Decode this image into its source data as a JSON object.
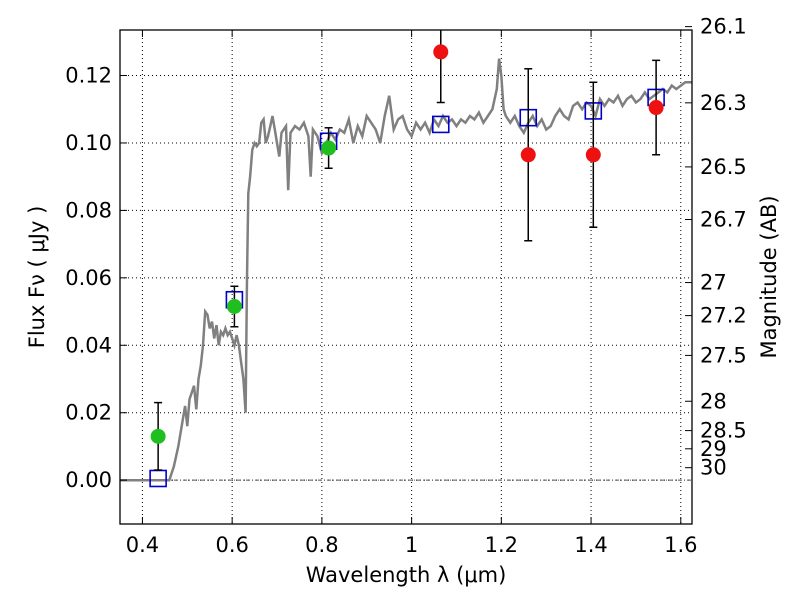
{
  "chart_data": {
    "type": "scatter",
    "title": "",
    "xlabel": "Wavelength  λ (μm)",
    "ylabel": "Flux  Fν  ( μJy )",
    "y2label": "Magnitude (AB)",
    "xlim": [
      0.35,
      1.625
    ],
    "ylim": [
      -0.013,
      0.1335
    ],
    "grid": true,
    "legend": "none",
    "x_ticks": [
      0.4,
      0.6,
      0.8,
      1.0,
      1.2,
      1.4,
      1.6
    ],
    "x_tick_labels": [
      "0.4",
      "0.6",
      "0.8",
      "1",
      "1.2",
      "1.4",
      "1.6"
    ],
    "y_ticks": [
      0.0,
      0.02,
      0.04,
      0.06,
      0.08,
      0.1,
      0.12
    ],
    "y_tick_labels": [
      "0.00",
      "0.02",
      "0.04",
      "0.06",
      "0.08",
      "0.10",
      "0.12"
    ],
    "y2_ticks": [
      {
        "label": "26.1",
        "flux": 0.1345
      },
      {
        "label": "26.3",
        "flux": 0.1119
      },
      {
        "label": "26.5",
        "flux": 0.0929
      },
      {
        "label": "26.7",
        "flux": 0.0773
      },
      {
        "label": "27",
        "flux": 0.0586
      },
      {
        "label": "27.2",
        "flux": 0.0488
      },
      {
        "label": "27.5",
        "flux": 0.037
      },
      {
        "label": "28",
        "flux": 0.0234
      },
      {
        "label": "28.5",
        "flux": 0.0147
      },
      {
        "label": "29",
        "flux": 0.0093
      },
      {
        "label": "30",
        "flux": 0.0037
      }
    ],
    "colors": {
      "template": "#808080",
      "model": "#0000cc",
      "green_points": "#1fbf1f",
      "red_points": "#ee1111",
      "errorbar": "#000000",
      "zero_line": "#555555"
    },
    "series": [
      {
        "kind": "line",
        "points": [
          [
            0.35,
            0.0
          ],
          [
            0.46,
            0.0
          ],
          [
            0.47,
            0.004
          ],
          [
            0.48,
            0.01
          ],
          [
            0.49,
            0.018
          ],
          [
            0.495,
            0.022
          ],
          [
            0.5,
            0.016
          ],
          [
            0.505,
            0.024
          ],
          [
            0.51,
            0.026
          ],
          [
            0.515,
            0.028
          ],
          [
            0.52,
            0.021
          ],
          [
            0.525,
            0.03
          ],
          [
            0.53,
            0.034
          ],
          [
            0.535,
            0.04
          ],
          [
            0.54,
            0.05
          ],
          [
            0.545,
            0.049
          ],
          [
            0.55,
            0.045
          ],
          [
            0.555,
            0.047
          ],
          [
            0.56,
            0.042
          ],
          [
            0.565,
            0.046
          ],
          [
            0.57,
            0.04
          ],
          [
            0.575,
            0.044
          ],
          [
            0.58,
            0.043
          ],
          [
            0.585,
            0.045
          ],
          [
            0.59,
            0.043
          ],
          [
            0.595,
            0.044
          ],
          [
            0.6,
            0.042
          ],
          [
            0.605,
            0.04
          ],
          [
            0.61,
            0.043
          ],
          [
            0.615,
            0.04
          ],
          [
            0.62,
            0.035
          ],
          [
            0.625,
            0.03
          ],
          [
            0.63,
            0.02
          ],
          [
            0.633,
            0.06
          ],
          [
            0.636,
            0.085
          ],
          [
            0.64,
            0.09
          ],
          [
            0.645,
            0.098
          ],
          [
            0.65,
            0.1
          ],
          [
            0.655,
            0.099
          ],
          [
            0.66,
            0.1
          ],
          [
            0.665,
            0.106
          ],
          [
            0.67,
            0.107
          ],
          [
            0.675,
            0.1
          ],
          [
            0.68,
            0.102
          ],
          [
            0.685,
            0.105
          ],
          [
            0.69,
            0.108
          ],
          [
            0.695,
            0.104
          ],
          [
            0.7,
            0.1
          ],
          [
            0.705,
            0.096
          ],
          [
            0.71,
            0.103
          ],
          [
            0.72,
            0.105
          ],
          [
            0.725,
            0.086
          ],
          [
            0.73,
            0.103
          ],
          [
            0.74,
            0.105
          ],
          [
            0.75,
            0.104
          ],
          [
            0.76,
            0.106
          ],
          [
            0.77,
            0.102
          ],
          [
            0.775,
            0.09
          ],
          [
            0.78,
            0.104
          ],
          [
            0.79,
            0.102
          ],
          [
            0.8,
            0.097
          ],
          [
            0.81,
            0.1
          ],
          [
            0.82,
            0.103
          ],
          [
            0.83,
            0.101
          ],
          [
            0.84,
            0.104
          ],
          [
            0.85,
            0.103
          ],
          [
            0.86,
            0.107
          ],
          [
            0.87,
            0.1
          ],
          [
            0.88,
            0.105
          ],
          [
            0.89,
            0.102
          ],
          [
            0.9,
            0.108
          ],
          [
            0.91,
            0.106
          ],
          [
            0.92,
            0.104
          ],
          [
            0.93,
            0.1
          ],
          [
            0.94,
            0.108
          ],
          [
            0.95,
            0.114
          ],
          [
            0.96,
            0.104
          ],
          [
            0.97,
            0.107
          ],
          [
            0.98,
            0.108
          ],
          [
            0.99,
            0.104
          ],
          [
            1.0,
            0.102
          ],
          [
            1.01,
            0.106
          ],
          [
            1.02,
            0.104
          ],
          [
            1.03,
            0.106
          ],
          [
            1.04,
            0.103
          ],
          [
            1.05,
            0.107
          ],
          [
            1.06,
            0.105
          ],
          [
            1.07,
            0.108
          ],
          [
            1.08,
            0.106
          ],
          [
            1.09,
            0.107
          ],
          [
            1.1,
            0.105
          ],
          [
            1.11,
            0.107
          ],
          [
            1.12,
            0.106
          ],
          [
            1.13,
            0.108
          ],
          [
            1.14,
            0.107
          ],
          [
            1.15,
            0.109
          ],
          [
            1.16,
            0.106
          ],
          [
            1.17,
            0.108
          ],
          [
            1.18,
            0.11
          ],
          [
            1.19,
            0.116
          ],
          [
            1.195,
            0.125
          ],
          [
            1.2,
            0.12
          ],
          [
            1.205,
            0.11
          ],
          [
            1.21,
            0.108
          ],
          [
            1.22,
            0.106
          ],
          [
            1.23,
            0.108
          ],
          [
            1.24,
            0.105
          ],
          [
            1.25,
            0.103
          ],
          [
            1.26,
            0.106
          ],
          [
            1.27,
            0.108
          ],
          [
            1.28,
            0.105
          ],
          [
            1.29,
            0.107
          ],
          [
            1.3,
            0.104
          ],
          [
            1.31,
            0.105
          ],
          [
            1.32,
            0.108
          ],
          [
            1.33,
            0.11
          ],
          [
            1.34,
            0.108
          ],
          [
            1.35,
            0.107
          ],
          [
            1.36,
            0.111
          ],
          [
            1.37,
            0.112
          ],
          [
            1.38,
            0.11
          ],
          [
            1.39,
            0.112
          ],
          [
            1.4,
            0.111
          ],
          [
            1.41,
            0.108
          ],
          [
            1.42,
            0.113
          ],
          [
            1.43,
            0.111
          ],
          [
            1.44,
            0.113
          ],
          [
            1.45,
            0.112
          ],
          [
            1.46,
            0.114
          ],
          [
            1.47,
            0.111
          ],
          [
            1.48,
            0.113
          ],
          [
            1.49,
            0.114
          ],
          [
            1.5,
            0.112
          ],
          [
            1.51,
            0.113
          ],
          [
            1.52,
            0.115
          ],
          [
            1.53,
            0.113
          ],
          [
            1.54,
            0.114
          ],
          [
            1.55,
            0.115
          ],
          [
            1.56,
            0.116
          ],
          [
            1.57,
            0.115
          ],
          [
            1.58,
            0.117
          ],
          [
            1.59,
            0.116
          ],
          [
            1.6,
            0.117
          ],
          [
            1.61,
            0.118
          ],
          [
            1.625,
            0.118
          ]
        ]
      },
      {
        "kind": "square-markers",
        "points": [
          [
            0.435,
            0.0005
          ],
          [
            0.605,
            0.0535
          ],
          [
            0.815,
            0.1005
          ],
          [
            1.065,
            0.1055
          ],
          [
            1.26,
            0.1075
          ],
          [
            1.405,
            0.1095
          ],
          [
            1.545,
            0.1135
          ]
        ]
      },
      {
        "kind": "points-with-errorbars",
        "color_key": "green_points",
        "points": [
          {
            "x": 0.435,
            "y": 0.013,
            "err_low": 0.01,
            "err_high": 0.01
          },
          {
            "x": 0.605,
            "y": 0.0515,
            "err_low": 0.006,
            "err_high": 0.006
          },
          {
            "x": 0.815,
            "y": 0.0985,
            "err_low": 0.006,
            "err_high": 0.006
          }
        ]
      },
      {
        "kind": "points-with-errorbars",
        "color_key": "red_points",
        "points": [
          {
            "x": 1.065,
            "y": 0.127,
            "err_low": 0.015,
            "err_high": 0.015
          },
          {
            "x": 1.26,
            "y": 0.0965,
            "err_low": 0.0255,
            "err_high": 0.0255
          },
          {
            "x": 1.405,
            "y": 0.0965,
            "err_low": 0.0215,
            "err_high": 0.0215
          },
          {
            "x": 1.545,
            "y": 0.1105,
            "err_low": 0.014,
            "err_high": 0.014
          }
        ]
      }
    ]
  }
}
